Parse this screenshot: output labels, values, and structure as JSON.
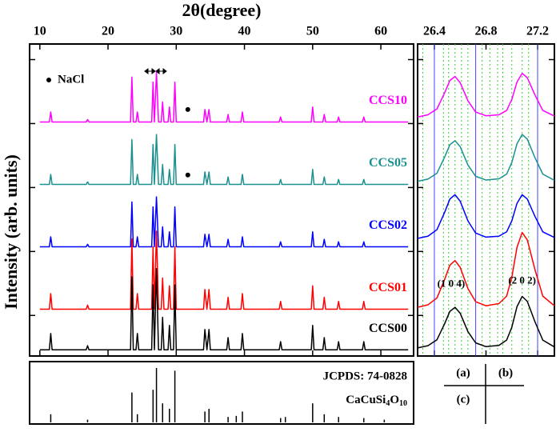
{
  "chart_data": [
    {
      "type": "line",
      "xlabel": "2θ(degree)",
      "ylabel": "Intensity (arb. units)",
      "xlim": [
        8.5,
        64.8
      ],
      "xticks": [
        10,
        20,
        30,
        40,
        50,
        60
      ],
      "ylim": [
        0,
        100
      ],
      "yticks": [
        13,
        33.5,
        54,
        74.5,
        95
      ],
      "x": [
        10,
        11.4,
        11.6,
        11.8,
        16.8,
        17.0,
        17.2,
        23.3,
        23.5,
        23.7,
        24.1,
        24.3,
        24.5,
        26.4,
        26.6,
        26.8,
        27.1,
        27.4,
        27.8,
        28.0,
        28.2,
        28.8,
        29.0,
        29.2,
        29.6,
        29.8,
        30.0,
        34.0,
        34.2,
        34.5,
        34.8,
        35.0,
        37.4,
        37.6,
        37.8,
        39.5,
        39.7,
        39.9,
        45.1,
        45.3,
        45.5,
        49.8,
        50.0,
        50.2,
        51.5,
        51.7,
        51.9,
        53.6,
        53.8,
        54.0,
        57.3,
        57.5,
        57.7,
        64
      ],
      "series": [
        {
          "name": "CCS10",
          "color": "#ff00ff",
          "values": [
            75,
            75,
            78.2,
            75,
            75,
            75.8,
            75,
            75,
            89.4,
            75,
            75,
            78.2,
            75,
            75,
            87.8,
            75,
            91,
            75,
            75,
            81.4,
            75,
            75,
            79.8,
            75,
            75,
            87.8,
            75,
            75,
            79,
            75,
            79,
            75,
            75,
            77.4,
            75,
            75,
            78.2,
            75,
            75,
            76.6,
            75,
            75,
            79.8,
            75,
            75,
            77.4,
            75,
            75,
            76.6,
            75,
            75,
            76.6,
            75,
            75
          ]
        },
        {
          "name": "CCS05",
          "color": "#1a9090",
          "values": [
            55,
            55,
            58.2,
            55,
            55,
            55.8,
            55,
            55,
            69.4,
            55,
            55,
            58.2,
            55,
            55,
            67.8,
            55,
            71,
            55,
            55,
            61.4,
            55,
            55,
            59.8,
            55,
            55,
            67.8,
            55,
            55,
            59,
            55,
            59,
            55,
            55,
            57.4,
            55,
            55,
            58.2,
            55,
            55,
            56.6,
            55,
            55,
            59.8,
            55,
            55,
            57.4,
            55,
            55,
            56.6,
            55,
            55,
            56.6,
            55,
            55
          ]
        },
        {
          "name": "CCS02",
          "color": "#0000ff",
          "values": [
            35,
            35,
            38.2,
            35,
            35,
            35.8,
            35,
            35,
            49.4,
            35,
            35,
            38.2,
            35,
            35,
            47.8,
            35,
            51,
            35,
            35,
            41.4,
            35,
            35,
            39.8,
            35,
            35,
            47.8,
            35,
            35,
            39,
            35,
            39,
            35,
            35,
            37.4,
            35,
            35,
            38.2,
            35,
            35,
            36.6,
            35,
            35,
            39.8,
            35,
            35,
            37.4,
            35,
            35,
            36.6,
            35,
            35,
            36.6,
            35,
            35
          ]
        },
        {
          "name": "CCS01",
          "color": "#ff0000",
          "values": [
            15,
            15,
            20,
            15,
            15,
            16.3,
            15,
            15,
            37.5,
            15,
            15,
            20,
            15,
            15,
            35,
            15,
            40,
            15,
            15,
            25,
            15,
            15,
            22.5,
            15,
            15,
            35,
            15,
            15,
            21.3,
            15,
            21.3,
            15,
            15,
            18.8,
            15,
            15,
            20,
            15,
            15,
            17.5,
            15,
            15,
            22.5,
            15,
            15,
            18.8,
            15,
            15,
            17.5,
            15,
            15,
            17.5,
            15,
            15
          ]
        },
        {
          "name": "CCS00",
          "color": "#000000",
          "values": [
            2,
            2,
            7.2,
            2,
            2,
            3.3,
            2,
            2,
            25.4,
            2,
            2,
            7.2,
            2,
            2,
            22.8,
            2,
            28,
            2,
            2,
            12.4,
            2,
            2,
            9.8,
            2,
            2,
            22.8,
            2,
            2,
            8.5,
            2,
            8.5,
            2,
            2,
            5.9,
            2,
            2,
            7.2,
            2,
            2,
            4.6,
            2,
            2,
            9.8,
            2,
            2,
            5.9,
            2,
            2,
            4.6,
            2,
            2,
            4.6,
            2,
            2
          ]
        }
      ],
      "markers": {
        "label": "NaCl",
        "x": [
          31.7,
          31.7
        ],
        "y": [
          79,
          58
        ]
      }
    },
    {
      "type": "line",
      "xlim": [
        26.27,
        27.33
      ],
      "xticks": [
        26.4,
        26.8,
        27.2
      ],
      "ylim": [
        0,
        100
      ],
      "yticks": [
        13,
        33.5,
        54,
        74.5,
        95
      ],
      "x": [
        26.27,
        26.35,
        26.42,
        26.48,
        26.52,
        26.56,
        26.6,
        26.66,
        26.72,
        26.8,
        26.9,
        26.96,
        27.0,
        27.04,
        27.08,
        27.12,
        27.18,
        27.24,
        27.33
      ],
      "series": [
        {
          "color": "#ff00ff",
          "values": [
            76.6,
            77.3,
            79.2,
            84.4,
            88.3,
            89.6,
            87.6,
            81.8,
            78.2,
            77.0,
            77.3,
            78.7,
            82.2,
            87.8,
            90.6,
            89.2,
            83.6,
            78.7,
            76.9
          ]
        },
        {
          "color": "#1a9090",
          "values": [
            56,
            56.7,
            58.6,
            63.8,
            67.7,
            69,
            67.1,
            61.2,
            57.6,
            56.4,
            56.8,
            58.3,
            62,
            68,
            71,
            69.5,
            63.5,
            58.3,
            56.3
          ]
        },
        {
          "color": "#0000ff",
          "values": [
            37.7,
            38.4,
            40.5,
            46.1,
            50.3,
            51.7,
            49.6,
            43.3,
            39.4,
            38.1,
            38.4,
            39.8,
            43.3,
            48.9,
            51.7,
            50.3,
            44.7,
            39.8,
            38.0
          ]
        },
        {
          "color": "#ff0000",
          "values": [
            15.6,
            16.4,
            18.6,
            24.6,
            29.1,
            30.6,
            28.4,
            21.6,
            17.4,
            16.1,
            16.8,
            19.2,
            25.2,
            34.8,
            39.6,
            37.2,
            27.6,
            19.2,
            16.1
          ]
        },
        {
          "color": "#000000",
          "values": [
            2.6,
            3.3,
            5.2,
            10.4,
            14.3,
            15.6,
            13.7,
            7.8,
            4.2,
            3.0,
            3.4,
            5.1,
            9.2,
            15.8,
            19.1,
            17.5,
            10.9,
            5.1,
            2.9
          ]
        }
      ],
      "solid_lines": {
        "color": "#4444ff",
        "x": [
          26.4,
          26.72,
          27.2
        ]
      },
      "dotted_lines": {
        "color": "#33cc33",
        "x": [
          26.31,
          26.47,
          26.51,
          26.56,
          26.61,
          26.66,
          26.77,
          26.83,
          26.89,
          26.93,
          27.0,
          27.08,
          27.13
        ]
      },
      "annotations": [
        {
          "text": "(1 0 4)",
          "x": 26.53,
          "y": 23
        },
        {
          "text": "(2 0 2)",
          "x": 27.08,
          "y": 24
        }
      ]
    },
    {
      "type": "stem",
      "title": "JCPDS: 74-0828",
      "subtitle": "CaCuSi4O10",
      "xlim": [
        8.5,
        64.8
      ],
      "ylim": [
        0,
        100
      ],
      "x": [
        11.6,
        17.0,
        23.5,
        24.3,
        26.6,
        27.1,
        28.0,
        29.0,
        29.8,
        34.2,
        34.8,
        37.6,
        38.8,
        39.7,
        45.3,
        46.0,
        50.0,
        51.7,
        53.8,
        57.5,
        60.5
      ],
      "values": [
        15,
        5,
        55,
        15,
        60,
        100,
        35,
        25,
        95,
        20,
        25,
        10,
        12,
        20,
        8,
        10,
        35,
        15,
        10,
        8,
        5
      ],
      "color": "#000000"
    }
  ],
  "panel_labels": [
    "(a)",
    "(b)",
    "(c)"
  ]
}
